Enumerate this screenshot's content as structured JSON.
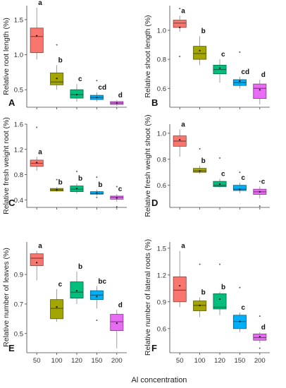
{
  "x_axis_title": "Al concentration",
  "chart_data": [
    {
      "type": "box",
      "panel_letter": "A",
      "ylabel": "Relative root length (%)",
      "categories": [
        "50",
        "100",
        "120",
        "150",
        "200"
      ],
      "ylim": [
        0.25,
        1.7
      ],
      "yticks": [
        "0.5",
        "1.0",
        "1.5"
      ],
      "ytick_values": [
        0.5,
        1.0,
        1.5
      ],
      "show_xticks": false,
      "boxes": [
        {
          "q1": 1.03,
          "median": 1.26,
          "q3": 1.38,
          "whisker_low": 0.93,
          "whisker_high": 1.67,
          "mean": 1.27,
          "outliers": [],
          "letter": "a"
        },
        {
          "q1": 0.57,
          "median": 0.61,
          "q3": 0.74,
          "whisker_low": 0.5,
          "whisker_high": 0.85,
          "mean": 0.66,
          "outliers": [
            1.14
          ],
          "letter": "b"
        },
        {
          "q1": 0.38,
          "median": 0.43,
          "q3": 0.5,
          "whisker_low": 0.33,
          "whisker_high": 0.58,
          "mean": 0.43,
          "outliers": [],
          "letter": "c"
        },
        {
          "q1": 0.36,
          "median": 0.39,
          "q3": 0.42,
          "whisker_low": 0.33,
          "whisker_high": 0.46,
          "mean": 0.39,
          "outliers": [
            0.63
          ],
          "letter": "cd"
        },
        {
          "q1": 0.29,
          "median": 0.31,
          "q3": 0.33,
          "whisker_low": 0.27,
          "whisker_high": 0.35,
          "mean": 0.31,
          "outliers": [],
          "letter": "d"
        }
      ]
    },
    {
      "type": "box",
      "panel_letter": "B",
      "ylabel": "Relative shoot length (%)",
      "categories": [
        "50",
        "100",
        "120",
        "150",
        "200"
      ],
      "ylim": [
        0.47,
        1.17
      ],
      "yticks": [
        "0.6",
        "0.8",
        "1.0"
      ],
      "ytick_values": [
        0.6,
        0.8,
        1.0
      ],
      "show_xticks": false,
      "boxes": [
        {
          "q1": 1.02,
          "median": 1.05,
          "q3": 1.07,
          "whisker_low": 0.99,
          "whisker_high": 1.1,
          "mean": 1.02,
          "outliers": [
            1.15,
            0.82
          ],
          "letter": "a"
        },
        {
          "q1": 0.8,
          "median": 0.84,
          "q3": 0.89,
          "whisker_low": 0.76,
          "whisker_high": 0.96,
          "mean": 0.86,
          "outliers": [],
          "letter": "b"
        },
        {
          "q1": 0.7,
          "median": 0.73,
          "q3": 0.76,
          "whisker_low": 0.64,
          "whisker_high": 0.8,
          "mean": 0.74,
          "outliers": [],
          "letter": "c"
        },
        {
          "q1": 0.62,
          "median": 0.64,
          "q3": 0.66,
          "whisker_low": 0.6,
          "whisker_high": 0.68,
          "mean": 0.65,
          "outliers": [
            0.85
          ],
          "letter": "cd"
        },
        {
          "q1": 0.53,
          "median": 0.6,
          "q3": 0.63,
          "whisker_low": 0.49,
          "whisker_high": 0.66,
          "mean": 0.59,
          "outliers": [],
          "letter": "d"
        }
      ]
    },
    {
      "type": "box",
      "panel_letter": "C",
      "ylabel": "Relative fresh weight root (%)",
      "categories": [
        "50",
        "100",
        "120",
        "150",
        "200"
      ],
      "ylim": [
        0.28,
        1.6
      ],
      "yticks": [
        "0.4",
        "0.8",
        "1.2",
        "1.6"
      ],
      "ytick_values": [
        0.4,
        0.8,
        1.2,
        1.6
      ],
      "show_xticks": false,
      "boxes": [
        {
          "q1": 0.93,
          "median": 0.98,
          "q3": 1.03,
          "whisker_low": 0.86,
          "whisker_high": 1.08,
          "mean": 0.99,
          "outliers": [
            1.55
          ],
          "letter": "a"
        },
        {
          "q1": 0.54,
          "median": 0.56,
          "q3": 0.58,
          "whisker_low": 0.53,
          "whisker_high": 0.6,
          "mean": 0.56,
          "outliers": [
            0.72
          ],
          "letter": "b"
        },
        {
          "q1": 0.53,
          "median": 0.57,
          "q3": 0.62,
          "whisker_low": 0.5,
          "whisker_high": 0.66,
          "mean": 0.58,
          "outliers": [
            0.85
          ],
          "letter": "b"
        },
        {
          "q1": 0.49,
          "median": 0.5,
          "q3": 0.53,
          "whisker_low": 0.47,
          "whisker_high": 0.56,
          "mean": 0.51,
          "outliers": [
            0.76,
            0.44
          ],
          "letter": "b"
        },
        {
          "q1": 0.41,
          "median": 0.44,
          "q3": 0.46,
          "whisker_low": 0.37,
          "whisker_high": 0.49,
          "mean": 0.43,
          "outliers": [
            0.61,
            0.29
          ],
          "letter": "c"
        }
      ]
    },
    {
      "type": "box",
      "panel_letter": "D",
      "ylabel": "Relative fresh weight shoot (%)",
      "categories": [
        "50",
        "100",
        "120",
        "150",
        "200"
      ],
      "ylim": [
        0.43,
        1.07
      ],
      "yticks": [
        "0.6",
        "0.8",
        "1.0"
      ],
      "ytick_values": [
        0.6,
        0.8,
        1.0
      ],
      "show_xticks": false,
      "boxes": [
        {
          "q1": 0.9,
          "median": 0.94,
          "q3": 0.98,
          "whisker_low": 0.82,
          "whisker_high": 1.03,
          "mean": 0.95,
          "outliers": [],
          "letter": "a"
        },
        {
          "q1": 0.7,
          "median": 0.71,
          "q3": 0.73,
          "whisker_low": 0.69,
          "whisker_high": 0.75,
          "mean": 0.71,
          "outliers": [
            0.88
          ],
          "letter": "b"
        },
        {
          "q1": 0.59,
          "median": 0.6,
          "q3": 0.63,
          "whisker_low": 0.58,
          "whisker_high": 0.65,
          "mean": 0.61,
          "outliers": [
            0.81
          ],
          "letter": "c"
        },
        {
          "q1": 0.56,
          "median": 0.57,
          "q3": 0.6,
          "whisker_low": 0.54,
          "whisker_high": 0.62,
          "mean": 0.57,
          "outliers": [
            0.7
          ],
          "letter": "c"
        },
        {
          "q1": 0.53,
          "median": 0.55,
          "q3": 0.57,
          "whisker_low": 0.5,
          "whisker_high": 0.59,
          "mean": 0.55,
          "outliers": [
            0.63,
            0.44
          ],
          "letter": "c"
        }
      ]
    },
    {
      "type": "box",
      "panel_letter": "E",
      "ylabel": "Relative number of leaves (%)",
      "categories": [
        "50",
        "100",
        "120",
        "150",
        "200"
      ],
      "ylim": [
        0.37,
        1.12
      ],
      "yticks": [
        "0.5",
        "0.7",
        "0.9"
      ],
      "ytick_values": [
        0.5,
        0.7,
        0.9
      ],
      "show_xticks": true,
      "boxes": [
        {
          "q1": 0.96,
          "median": 1.01,
          "q3": 1.04,
          "whisker_low": 0.86,
          "whisker_high": 1.06,
          "mean": 0.98,
          "outliers": [],
          "letter": "a"
        },
        {
          "q1": 0.6,
          "median": 0.67,
          "q3": 0.73,
          "whisker_low": 0.58,
          "whisker_high": 0.8,
          "mean": 0.68,
          "outliers": [],
          "letter": "c"
        },
        {
          "q1": 0.74,
          "median": 0.78,
          "q3": 0.85,
          "whisker_low": 0.7,
          "whisker_high": 0.92,
          "mean": 0.79,
          "outliers": [],
          "letter": "b"
        },
        {
          "q1": 0.73,
          "median": 0.76,
          "q3": 0.79,
          "whisker_low": 0.67,
          "whisker_high": 0.82,
          "mean": 0.75,
          "outliers": [
            0.59
          ],
          "letter": "bc"
        },
        {
          "q1": 0.52,
          "median": 0.58,
          "q3": 0.63,
          "whisker_low": 0.4,
          "whisker_high": 0.66,
          "mean": 0.57,
          "outliers": [],
          "letter": "d"
        }
      ]
    },
    {
      "type": "box",
      "panel_letter": "F",
      "ylabel": "Relative number of lateral roots (%)",
      "categories": [
        "50",
        "100",
        "120",
        "150",
        "200"
      ],
      "ylim": [
        0.33,
        1.57
      ],
      "yticks": [
        "0.6",
        "0.9",
        "1.2",
        "1.5"
      ],
      "ytick_values": [
        0.6,
        0.9,
        1.2,
        1.5
      ],
      "show_xticks": true,
      "boxes": [
        {
          "q1": 0.9,
          "median": 1.03,
          "q3": 1.18,
          "whisker_low": 0.84,
          "whisker_high": 1.47,
          "mean": 1.08,
          "outliers": [],
          "letter": "a"
        },
        {
          "q1": 0.8,
          "median": 0.86,
          "q3": 0.91,
          "whisker_low": 0.73,
          "whisker_high": 0.95,
          "mean": 0.86,
          "outliers": [
            1.32
          ],
          "letter": "b"
        },
        {
          "q1": 0.82,
          "median": 0.84,
          "q3": 0.99,
          "whisker_low": 0.75,
          "whisker_high": 1.01,
          "mean": 0.93,
          "outliers": [
            1.32
          ],
          "letter": "b"
        },
        {
          "q1": 0.6,
          "median": 0.68,
          "q3": 0.75,
          "whisker_low": 0.56,
          "whisker_high": 0.78,
          "mean": 0.68,
          "outliers": [
            1.06
          ],
          "letter": "c"
        },
        {
          "q1": 0.47,
          "median": 0.5,
          "q3": 0.54,
          "whisker_low": 0.44,
          "whisker_high": 0.56,
          "mean": 0.51,
          "outliers": [
            0.74,
            0.38
          ],
          "letter": "d"
        }
      ]
    }
  ],
  "colors": [
    "#F8766D",
    "#A3A500",
    "#00BF7D",
    "#00B0F6",
    "#E76BF3"
  ]
}
